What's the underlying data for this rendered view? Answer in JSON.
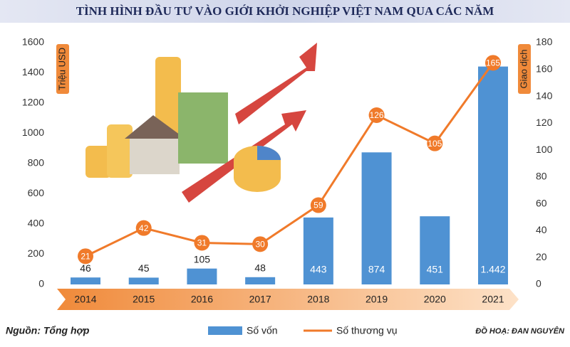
{
  "chart_data": {
    "type": "bar-line",
    "title": "TÌNH HÌNH ĐẦU TƯ VÀO GIỚI KHỞI NGHIỆP VIỆT NAM QUA CÁC NĂM",
    "y_label": "Triệu USD",
    "y2_label": "Giao dịch",
    "source": "Nguồn: Tổng hợp",
    "credit": "ĐỒ HOẠ: ĐAN NGUYÊN",
    "categories": [
      "2014",
      "2015",
      "2016",
      "2017",
      "2018",
      "2019",
      "2020",
      "2021"
    ],
    "series": [
      {
        "name": "Số vốn",
        "type": "bar",
        "color": "#4f92d3",
        "values": [
          46,
          45,
          105,
          48,
          443,
          874,
          451,
          1442
        ],
        "value_labels": [
          "46",
          "45",
          "105",
          "48",
          "443",
          "874",
          "451",
          "1.442"
        ]
      },
      {
        "name": "Số thương vụ",
        "type": "line",
        "axis": "y2",
        "color": "#f07a2a",
        "values": [
          21,
          42,
          31,
          30,
          59,
          126,
          105,
          165
        ]
      }
    ],
    "ylim": [
      0,
      1600
    ],
    "yticks": [
      0,
      200,
      400,
      600,
      800,
      1000,
      1200,
      1400,
      1600
    ],
    "y2lim": [
      0,
      180
    ],
    "y2ticks": [
      0,
      20,
      40,
      60,
      80,
      100,
      120,
      140,
      160,
      180
    ]
  }
}
